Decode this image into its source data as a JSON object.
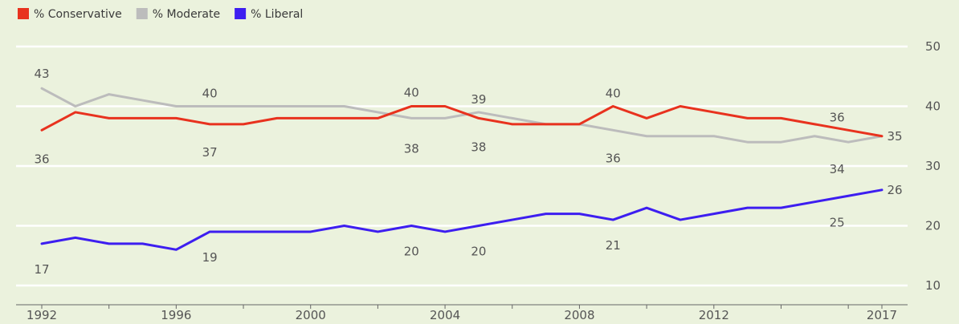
{
  "chart_data": {
    "type": "line",
    "x": [
      1992,
      1993,
      1994,
      1995,
      1996,
      1997,
      1998,
      1999,
      2000,
      2001,
      2002,
      2003,
      2004,
      2005,
      2006,
      2007,
      2008,
      2009,
      2010,
      2011,
      2012,
      2013,
      2014,
      2015,
      2016,
      2017
    ],
    "series": [
      {
        "name": "% Conservative",
        "color": "#e8321e",
        "values": [
          36,
          39,
          38,
          38,
          38,
          37,
          37,
          38,
          38,
          38,
          38,
          40,
          40,
          38,
          37,
          37,
          37,
          40,
          38,
          40,
          39,
          38,
          38,
          37,
          36,
          35
        ]
      },
      {
        "name": "% Moderate",
        "color": "#bcbcbc",
        "values": [
          43,
          40,
          42,
          41,
          40,
          40,
          40,
          40,
          40,
          40,
          39,
          38,
          38,
          39,
          38,
          37,
          37,
          36,
          35,
          35,
          35,
          34,
          34,
          35,
          34,
          35
        ]
      },
      {
        "name": "% Liberal",
        "color": "#3d1ef0",
        "values": [
          17,
          18,
          17,
          17,
          16,
          19,
          19,
          19,
          19,
          20,
          19,
          20,
          19,
          20,
          21,
          22,
          22,
          21,
          23,
          21,
          22,
          23,
          23,
          24,
          25,
          26
        ]
      }
    ],
    "x_tick_labels": [
      "1992",
      "1996",
      "2000",
      "2004",
      "2008",
      "2012",
      "2017"
    ],
    "y_tick_labels": [
      "50",
      "40",
      "30",
      "20",
      "10"
    ],
    "ylim": [
      10,
      50
    ],
    "grid": true,
    "legend_position": "top-left",
    "data_labels": [
      {
        "series": "% Moderate",
        "x": 1992,
        "text": "43"
      },
      {
        "series": "% Conservative",
        "x": 1992,
        "text": "36"
      },
      {
        "series": "% Moderate",
        "x": 1997,
        "text": "40"
      },
      {
        "series": "% Conservative",
        "x": 1997,
        "text": "37"
      },
      {
        "series": "% Conservative",
        "x": 2003,
        "text": "40"
      },
      {
        "series": "% Moderate",
        "x": 2003,
        "text": "38"
      },
      {
        "series": "% Moderate",
        "x": 2005,
        "text": "39"
      },
      {
        "series": "% Conservative",
        "x": 2005,
        "text": "38"
      },
      {
        "series": "% Conservative",
        "x": 2009,
        "text": "40"
      },
      {
        "series": "% Moderate",
        "x": 2009,
        "text": "36"
      },
      {
        "series": "% Conservative",
        "x": 2016,
        "text": "36"
      },
      {
        "series": "% Moderate",
        "x": 2016,
        "text": "34"
      },
      {
        "series": "% Moderate",
        "x": 2017,
        "text": "35"
      },
      {
        "series": "% Liberal",
        "x": 1992,
        "text": "17"
      },
      {
        "series": "% Liberal",
        "x": 1997,
        "text": "19"
      },
      {
        "series": "% Liberal",
        "x": 2003,
        "text": "20"
      },
      {
        "series": "% Liberal",
        "x": 2005,
        "text": "20"
      },
      {
        "series": "% Liberal",
        "x": 2009,
        "text": "21"
      },
      {
        "series": "% Liberal",
        "x": 2016,
        "text": "25"
      },
      {
        "series": "% Liberal",
        "x": 2017,
        "text": "26"
      }
    ]
  },
  "colors": {
    "background": "#ebf2dd",
    "gridline": "#ffffff",
    "axis": "#666666"
  }
}
